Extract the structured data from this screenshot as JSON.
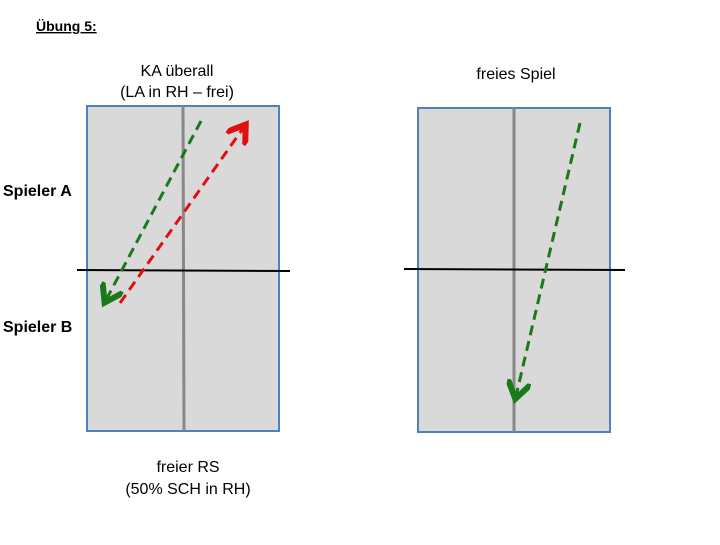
{
  "header": {
    "title": "Übung 5:"
  },
  "left_table": {
    "caption_top": [
      "KA überall",
      "(LA in RH – frei)"
    ],
    "caption_bottom": [
      "freier RS",
      "(50% SCH in RH)"
    ]
  },
  "right_table": {
    "caption_top": "freies Spiel"
  },
  "players": [
    "Spieler A",
    "Spieler B"
  ]
}
